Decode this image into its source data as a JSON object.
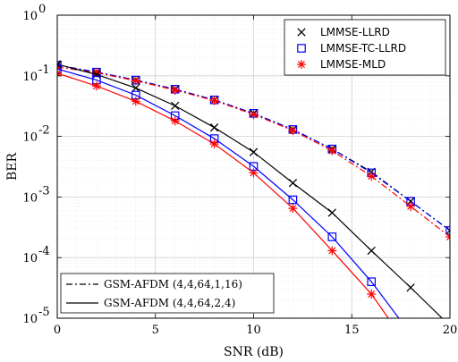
{
  "chart_data": {
    "type": "line",
    "xlabel": "SNR (dB)",
    "ylabel": "BER",
    "xlim": [
      0,
      20
    ],
    "ylim": [
      1e-05,
      1
    ],
    "yscale": "log",
    "grid": true,
    "x_ticks": [
      0,
      5,
      10,
      15,
      20
    ],
    "y_tick_labels": [
      {
        "base": "10",
        "exp": "-5",
        "value": 1e-05
      },
      {
        "base": "10",
        "exp": "-4",
        "value": 0.0001
      },
      {
        "base": "10",
        "exp": "-3",
        "value": 0.001
      },
      {
        "base": "10",
        "exp": "-2",
        "value": 0.01
      },
      {
        "base": "10",
        "exp": "-1",
        "value": 0.1
      },
      {
        "base": "10",
        "exp": "0",
        "value": 1
      }
    ],
    "legend_markers": {
      "position": "top-right",
      "entries": [
        {
          "label": "LMMSE-LLRD",
          "marker": "x",
          "color": "#000000"
        },
        {
          "label": "LMMSE-TC-LLRD",
          "marker": "square",
          "color": "#0000ff"
        },
        {
          "label": "LMMSE-MLD",
          "marker": "asterisk",
          "color": "#ff0000"
        }
      ]
    },
    "legend_lines": {
      "position": "bottom-left",
      "entries": [
        {
          "label": "GSM-AFDM (4,4,64,1,16)",
          "linestyle": "dashdot"
        },
        {
          "label": "GSM-AFDM (4,4,64,2,4)",
          "linestyle": "solid"
        }
      ]
    },
    "series": [
      {
        "detector": "LMMSE-LLRD",
        "config": "GSM-AFDM (4,4,64,1,16)",
        "color": "#000000",
        "marker": "x",
        "linestyle": "dashdot",
        "x": [
          0,
          2,
          4,
          6,
          8,
          10,
          12,
          14,
          16,
          18,
          20
        ],
        "y": [
          0.15,
          0.115,
          0.085,
          0.06,
          0.04,
          0.024,
          0.013,
          0.0062,
          0.0026,
          0.00085,
          0.00028
        ]
      },
      {
        "detector": "LMMSE-TC-LLRD",
        "config": "GSM-AFDM (4,4,64,1,16)",
        "color": "#0000ff",
        "marker": "square",
        "linestyle": "dashdot",
        "x": [
          0,
          2,
          4,
          6,
          8,
          10,
          12,
          14,
          16,
          18,
          20
        ],
        "y": [
          0.15,
          0.115,
          0.085,
          0.06,
          0.04,
          0.024,
          0.013,
          0.0062,
          0.0025,
          0.00085,
          0.00028
        ]
      },
      {
        "detector": "LMMSE-MLD",
        "config": "GSM-AFDM (4,4,64,1,16)",
        "color": "#ff0000",
        "marker": "asterisk",
        "linestyle": "dashdot",
        "x": [
          0,
          2,
          4,
          6,
          8,
          10,
          12,
          14,
          16,
          18,
          20
        ],
        "y": [
          0.14,
          0.112,
          0.083,
          0.058,
          0.039,
          0.023,
          0.0125,
          0.0058,
          0.0022,
          0.0007,
          0.00022
        ]
      },
      {
        "detector": "LMMSE-LLRD",
        "config": "GSM-AFDM (4,4,64,2,4)",
        "color": "#000000",
        "marker": "x",
        "linestyle": "solid",
        "x": [
          0,
          2,
          4,
          6,
          8,
          10,
          12,
          14,
          16,
          18,
          20
        ],
        "y": [
          0.155,
          0.105,
          0.063,
          0.032,
          0.014,
          0.0055,
          0.0017,
          0.00055,
          0.00013,
          3.2e-05,
          7.5e-06
        ]
      },
      {
        "detector": "LMMSE-TC-LLRD",
        "config": "GSM-AFDM (4,4,64,2,4)",
        "color": "#0000ff",
        "marker": "square",
        "linestyle": "solid",
        "x": [
          0,
          2,
          4,
          6,
          8,
          10,
          12,
          14,
          16,
          18
        ],
        "y": [
          0.13,
          0.085,
          0.048,
          0.022,
          0.0092,
          0.0032,
          0.0009,
          0.00022,
          4e-05,
          5.5e-06
        ]
      },
      {
        "detector": "LMMSE-MLD",
        "config": "GSM-AFDM (4,4,64,2,4)",
        "color": "#ff0000",
        "marker": "asterisk",
        "linestyle": "solid",
        "x": [
          0,
          2,
          4,
          6,
          8,
          10,
          12,
          14,
          16,
          18
        ],
        "y": [
          0.11,
          0.068,
          0.038,
          0.018,
          0.0075,
          0.0025,
          0.00065,
          0.00013,
          2.5e-05,
          3e-06
        ]
      }
    ]
  }
}
